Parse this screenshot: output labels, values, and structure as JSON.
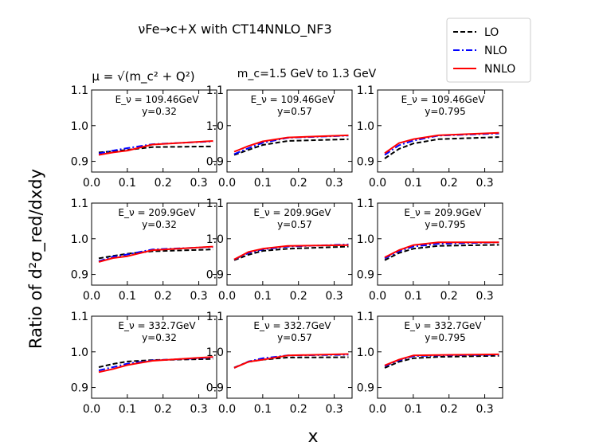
{
  "figure": {
    "title": "νFe→c+X with CT14NNLO_NF3",
    "scale_note": "μ = √(m_c² + Q²)",
    "mass_note": "m_c=1.5 GeV to 1.3 GeV",
    "ylabel": "Ratio of d²σ_red/dxdy",
    "xlabel": "x"
  },
  "legend": {
    "placement": "top-right",
    "entries": [
      {
        "name": "LO",
        "color": "#000000",
        "dash": "dashed"
      },
      {
        "name": "NLO",
        "color": "#0000ff",
        "dash": "dashdot"
      },
      {
        "name": "NNLO",
        "color": "#ff0000",
        "dash": "solid"
      }
    ]
  },
  "chart_data": [
    {
      "type": "line",
      "panel": "row1-col1",
      "annotation": {
        "energy": "E_ν = 109.46GeV",
        "y": "y=0.32"
      },
      "xlim": [
        0,
        0.35
      ],
      "ylim": [
        0.87,
        1.1
      ],
      "xticks": [
        "0.0",
        "0.1",
        "0.2",
        "0.3"
      ],
      "yticks": [
        "0.9",
        "1.0",
        "1.1"
      ],
      "x": [
        0.02,
        0.06,
        0.1,
        0.17,
        0.34
      ],
      "series": [
        {
          "name": "LO",
          "values": [
            0.925,
            0.928,
            0.932,
            0.94,
            0.942
          ]
        },
        {
          "name": "NLO",
          "values": [
            0.922,
            0.93,
            0.937,
            0.948,
            0.956
          ]
        },
        {
          "name": "NNLO",
          "values": [
            0.918,
            0.925,
            0.93,
            0.947,
            0.957
          ]
        }
      ]
    },
    {
      "type": "line",
      "panel": "row1-col2",
      "annotation": {
        "energy": "E_ν = 109.46GeV",
        "y": "y=0.57"
      },
      "xlim": [
        0,
        0.35
      ],
      "ylim": [
        0.87,
        1.1
      ],
      "xticks": [
        "0.0",
        "0.1",
        "0.2",
        "0.3"
      ],
      "yticks": [
        "0.9",
        "1.0",
        "1.1"
      ],
      "x": [
        0.02,
        0.06,
        0.1,
        0.17,
        0.34
      ],
      "series": [
        {
          "name": "LO",
          "values": [
            0.918,
            0.932,
            0.946,
            0.957,
            0.962
          ]
        },
        {
          "name": "NLO",
          "values": [
            0.92,
            0.937,
            0.952,
            0.966,
            0.972
          ]
        },
        {
          "name": "NNLO",
          "values": [
            0.927,
            0.943,
            0.956,
            0.967,
            0.973
          ]
        }
      ]
    },
    {
      "type": "line",
      "panel": "row1-col3",
      "annotation": {
        "energy": "E_ν = 109.46GeV",
        "y": "y=0.795"
      },
      "xlim": [
        0,
        0.35
      ],
      "ylim": [
        0.87,
        1.1
      ],
      "xticks": [
        "0.0",
        "0.1",
        "0.2",
        "0.3"
      ],
      "yticks": [
        "0.9",
        "1.0",
        "1.1"
      ],
      "x": [
        0.02,
        0.06,
        0.1,
        0.17,
        0.34
      ],
      "series": [
        {
          "name": "LO",
          "values": [
            0.908,
            0.935,
            0.95,
            0.962,
            0.968
          ]
        },
        {
          "name": "NLO",
          "values": [
            0.918,
            0.945,
            0.958,
            0.972,
            0.978
          ]
        },
        {
          "name": "NNLO",
          "values": [
            0.923,
            0.951,
            0.962,
            0.973,
            0.98
          ]
        }
      ]
    },
    {
      "type": "line",
      "panel": "row2-col1",
      "annotation": {
        "energy": "E_ν = 209.9GeV",
        "y": "y=0.32"
      },
      "xlim": [
        0,
        0.35
      ],
      "ylim": [
        0.87,
        1.1
      ],
      "xticks": [
        "0.0",
        "0.1",
        "0.2",
        "0.3"
      ],
      "yticks": [
        "0.9",
        "1.0",
        "1.1"
      ],
      "x": [
        0.02,
        0.06,
        0.1,
        0.17,
        0.34
      ],
      "series": [
        {
          "name": "LO",
          "values": [
            0.945,
            0.952,
            0.958,
            0.965,
            0.97
          ]
        },
        {
          "name": "NLO",
          "values": [
            0.937,
            0.95,
            0.956,
            0.97,
            0.977
          ]
        },
        {
          "name": "NNLO",
          "values": [
            0.935,
            0.946,
            0.951,
            0.968,
            0.978
          ]
        }
      ]
    },
    {
      "type": "line",
      "panel": "row2-col2",
      "annotation": {
        "energy": "E_ν = 209.9GeV",
        "y": "y=0.57"
      },
      "xlim": [
        0,
        0.35
      ],
      "ylim": [
        0.87,
        1.1
      ],
      "xticks": [
        "0.0",
        "0.1",
        "0.2",
        "0.3"
      ],
      "yticks": [
        "0.9",
        "1.0",
        "1.1"
      ],
      "x": [
        0.02,
        0.06,
        0.1,
        0.17,
        0.34
      ],
      "series": [
        {
          "name": "LO",
          "values": [
            0.94,
            0.955,
            0.966,
            0.972,
            0.978
          ]
        },
        {
          "name": "NLO",
          "values": [
            0.942,
            0.96,
            0.97,
            0.978,
            0.984
          ]
        },
        {
          "name": "NNLO",
          "values": [
            0.942,
            0.963,
            0.972,
            0.98,
            0.982
          ]
        }
      ]
    },
    {
      "type": "line",
      "panel": "row2-col3",
      "annotation": {
        "energy": "E_ν = 209.9GeV",
        "y": "y=0.795"
      },
      "xlim": [
        0,
        0.35
      ],
      "ylim": [
        0.87,
        1.1
      ],
      "xticks": [
        "0.0",
        "0.1",
        "0.2",
        "0.3"
      ],
      "yticks": [
        "0.9",
        "1.0",
        "1.1"
      ],
      "x": [
        0.02,
        0.06,
        0.1,
        0.17,
        0.34
      ],
      "series": [
        {
          "name": "LO",
          "values": [
            0.94,
            0.96,
            0.972,
            0.98,
            0.983
          ]
        },
        {
          "name": "NLO",
          "values": [
            0.945,
            0.965,
            0.978,
            0.986,
            0.99
          ]
        },
        {
          "name": "NNLO",
          "values": [
            0.948,
            0.968,
            0.982,
            0.99,
            0.99
          ]
        }
      ]
    },
    {
      "type": "line",
      "panel": "row3-col1",
      "annotation": {
        "energy": "E_ν = 332.7GeV",
        "y": "y=0.32"
      },
      "xlim": [
        0,
        0.35
      ],
      "ylim": [
        0.87,
        1.1
      ],
      "xticks": [
        "0.0",
        "0.1",
        "0.2",
        "0.3"
      ],
      "yticks": [
        "0.9",
        "1.0",
        "1.1"
      ],
      "x": [
        0.02,
        0.06,
        0.1,
        0.17,
        0.34
      ],
      "series": [
        {
          "name": "LO",
          "values": [
            0.957,
            0.966,
            0.973,
            0.977,
            0.98
          ]
        },
        {
          "name": "NLO",
          "values": [
            0.948,
            0.957,
            0.967,
            0.976,
            0.984
          ]
        },
        {
          "name": "NNLO",
          "values": [
            0.943,
            0.952,
            0.963,
            0.975,
            0.986
          ]
        }
      ]
    },
    {
      "type": "line",
      "panel": "row3-col2",
      "annotation": {
        "energy": "E_ν = 332.7GeV",
        "y": "y=0.57"
      },
      "xlim": [
        0,
        0.35
      ],
      "ylim": [
        0.87,
        1.1
      ],
      "xticks": [
        "0.0",
        "0.1",
        "0.2",
        "0.3"
      ],
      "yticks": [
        "0.9",
        "1.0",
        "1.1"
      ],
      "x": [
        0.02,
        0.06,
        0.1,
        0.17,
        0.34
      ],
      "series": [
        {
          "name": "LO",
          "values": [
            0.956,
            0.972,
            0.978,
            0.984,
            0.985
          ]
        },
        {
          "name": "NLO",
          "values": [
            0.955,
            0.973,
            0.982,
            0.99,
            0.992
          ]
        },
        {
          "name": "NNLO",
          "values": [
            0.955,
            0.972,
            0.978,
            0.99,
            0.994
          ]
        }
      ]
    },
    {
      "type": "line",
      "panel": "row3-col3",
      "annotation": {
        "energy": "E_ν = 332.7GeV",
        "y": "y=0.795"
      },
      "xlim": [
        0,
        0.35
      ],
      "ylim": [
        0.87,
        1.1
      ],
      "xticks": [
        "0.0",
        "0.1",
        "0.2",
        "0.3"
      ],
      "yticks": [
        "0.9",
        "1.0",
        "1.1"
      ],
      "x": [
        0.02,
        0.06,
        0.1,
        0.17,
        0.34
      ],
      "series": [
        {
          "name": "LO",
          "values": [
            0.955,
            0.972,
            0.982,
            0.986,
            0.989
          ]
        },
        {
          "name": "NLO",
          "values": [
            0.96,
            0.976,
            0.988,
            0.99,
            0.992
          ]
        },
        {
          "name": "NNLO",
          "values": [
            0.962,
            0.978,
            0.99,
            0.991,
            0.993
          ]
        }
      ]
    }
  ]
}
